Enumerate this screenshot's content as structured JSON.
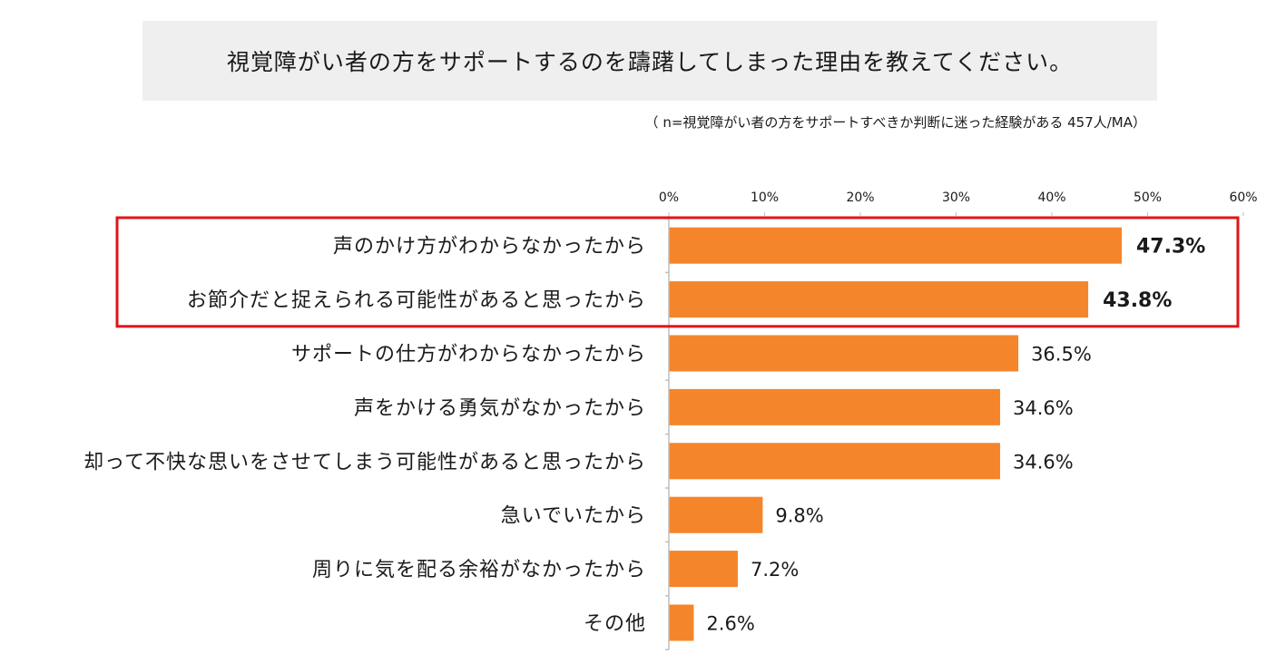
{
  "header": {
    "title": "視覚障がい者の方をサポートするのを躊躇してしまった理由を教えてください。",
    "note": "（ n=視覚障がい者の方をサポートすべきか判断に迷った経験がある 457人/MA）"
  },
  "colors": {
    "bar": "#f5852a",
    "highlight_border": "#e2141b",
    "title_background": "#efefef",
    "axis": "#bfbfbf"
  },
  "chart_data": {
    "type": "bar",
    "orientation": "horizontal",
    "categories": [
      "声のかけ方がわからなかったから",
      "お節介だと捉えられる可能性があると思ったから",
      "サポートの仕方がわからなかったから",
      "声をかける勇気がなかったから",
      "却って不快な思いをさせてしまう可能性があると思ったから",
      "急いでいたから",
      "周りに気を配る余裕がなかったから",
      "その他"
    ],
    "values": [
      47.3,
      43.8,
      36.5,
      34.6,
      34.6,
      9.8,
      7.2,
      2.6
    ],
    "value_labels": [
      "47.3%",
      "43.8%",
      "36.5%",
      "34.6%",
      "34.6%",
      "9.8%",
      "7.2%",
      "2.6%"
    ],
    "highlighted_indices": [
      0,
      1
    ],
    "xlim": [
      0,
      60
    ],
    "x_ticks": [
      0,
      10,
      20,
      30,
      40,
      50,
      60
    ],
    "x_tick_labels": [
      "0%",
      "10%",
      "20%",
      "30%",
      "40%",
      "50%",
      "60%"
    ],
    "x_axis_position": "top",
    "grid": false,
    "legend": "none"
  }
}
